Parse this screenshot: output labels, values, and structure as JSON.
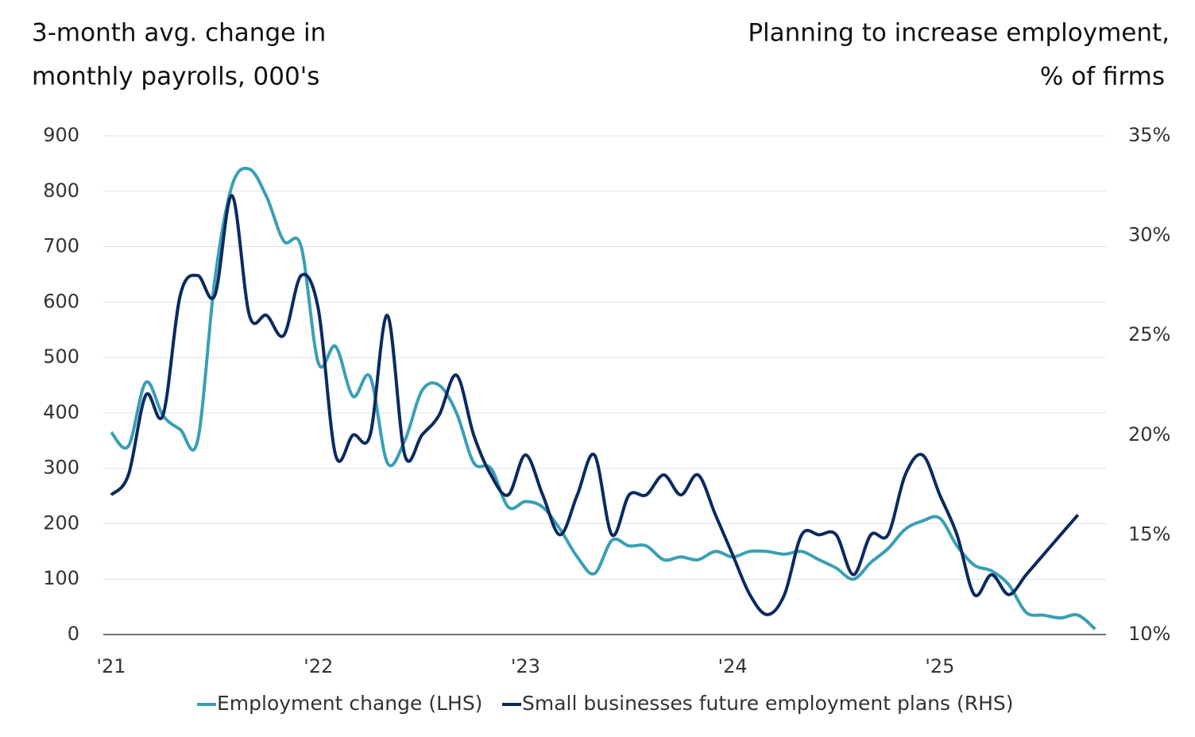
{
  "chart_data": {
    "type": "line",
    "y_label": [
      "3-month avg. change in",
      "monthly payrolls, 000's"
    ],
    "y2_label": [
      "Planning to increase employment,",
      "% of firms"
    ],
    "x": [
      2021,
      2021.083,
      2021.167,
      2021.25,
      2021.333,
      2021.417,
      2021.5,
      2021.583,
      2021.667,
      2021.75,
      2021.833,
      2021.917,
      2022,
      2022.083,
      2022.167,
      2022.25,
      2022.333,
      2022.417,
      2022.5,
      2022.583,
      2022.667,
      2022.75,
      2022.833,
      2022.917,
      2023,
      2023.083,
      2023.167,
      2023.25,
      2023.333,
      2023.417,
      2023.5,
      2023.583,
      2023.667,
      2023.75,
      2023.833,
      2023.917,
      2024,
      2024.083,
      2024.167,
      2024.25,
      2024.333,
      2024.417,
      2024.5,
      2024.583,
      2024.667,
      2024.75,
      2024.833,
      2024.917,
      2025,
      2025.083,
      2025.167,
      2025.25,
      2025.333,
      2025.417,
      2025.5,
      2025.583,
      2025.667,
      2025.75
    ],
    "series": [
      {
        "name": "Employment change (LHS)",
        "color": "#3a9fb5",
        "values": [
          365,
          340,
          455,
          395,
          370,
          350,
          640,
          810,
          840,
          790,
          710,
          700,
          490,
          520,
          430,
          465,
          310,
          350,
          440,
          450,
          400,
          310,
          300,
          230,
          240,
          230,
          190,
          140,
          110,
          170,
          160,
          160,
          135,
          140,
          135,
          150,
          140,
          150,
          150,
          145,
          150,
          135,
          120,
          100,
          130,
          155,
          190,
          205,
          210,
          160,
          125,
          115,
          90,
          40,
          35,
          30,
          35,
          10
        ]
      },
      {
        "name": "Small businesses future employment plans (RHS)",
        "color": "#0b2a5f",
        "axis": "y2",
        "values": [
          17,
          18,
          22,
          21,
          27,
          28,
          27,
          32,
          26,
          26,
          25,
          28,
          26.3,
          19,
          20,
          20,
          26,
          19,
          20,
          21,
          23,
          20,
          18,
          17,
          19,
          17,
          15,
          17,
          19,
          15,
          17,
          17,
          18,
          17,
          18,
          16,
          14,
          12,
          11,
          12,
          15,
          15,
          15,
          13,
          15,
          15,
          18,
          19,
          17,
          15,
          12,
          13,
          12,
          13,
          14,
          15,
          16,
          null
        ]
      }
    ],
    "xlim": [
      2020.95,
      2025.8
    ],
    "xticks": [
      {
        "value": 2021,
        "label": "'21"
      },
      {
        "value": 2022,
        "label": "'22"
      },
      {
        "value": 2023,
        "label": "'23"
      },
      {
        "value": 2024,
        "label": "'24"
      },
      {
        "value": 2025,
        "label": "'25"
      }
    ],
    "ylim": [
      0,
      900
    ],
    "yticks": [
      0,
      100,
      200,
      300,
      400,
      500,
      600,
      700,
      800,
      900
    ],
    "y2lim": [
      10,
      35
    ],
    "y2ticks": [
      {
        "value": 10,
        "label": "10%"
      },
      {
        "value": 15,
        "label": "15%"
      },
      {
        "value": 20,
        "label": "20%"
      },
      {
        "value": 25,
        "label": "25%"
      },
      {
        "value": 30,
        "label": "30%"
      },
      {
        "value": 35,
        "label": "35%"
      }
    ],
    "grid": true
  }
}
